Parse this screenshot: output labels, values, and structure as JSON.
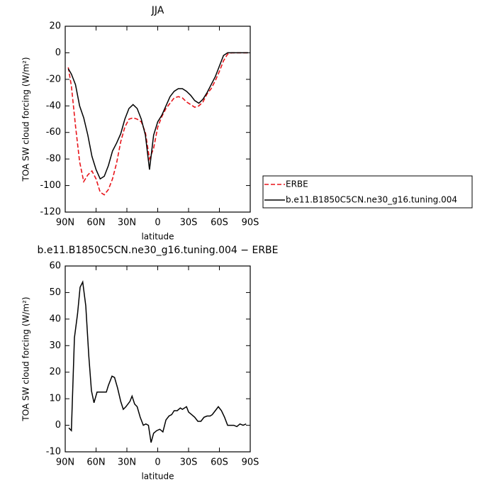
{
  "chart_data": [
    {
      "type": "line",
      "title": "JJA",
      "xlabel": "latitude",
      "ylabel": "TOA SW cloud forcing (W/m²)",
      "x": [
        87,
        84,
        80,
        76,
        72,
        68,
        64,
        60,
        56,
        52,
        48,
        44,
        40,
        36,
        32,
        28,
        24,
        20,
        16,
        12,
        8,
        4,
        0,
        -4,
        -8,
        -12,
        -16,
        -20,
        -24,
        -28,
        -32,
        -36,
        -40,
        -44,
        -48,
        -52,
        -56,
        -60,
        -64,
        -68,
        -72,
        -76,
        -80,
        -84,
        -88
      ],
      "xlim": [
        90,
        -90
      ],
      "xticks": [
        {
          "value": 90,
          "label": "90N"
        },
        {
          "value": 60,
          "label": "60N"
        },
        {
          "value": 30,
          "label": "30N"
        },
        0,
        {
          "value": -30,
          "label": "30S"
        },
        {
          "value": -60,
          "label": "60S"
        },
        {
          "value": -90,
          "label": "90S"
        }
      ],
      "ylim": [
        -120,
        20
      ],
      "yticks": [
        -120,
        -100,
        -80,
        -60,
        -40,
        -20,
        0,
        20
      ],
      "legend": "right",
      "series": [
        {
          "name": "ERBE",
          "color": "#e8141a",
          "dashed": true,
          "values": [
            -11,
            -25,
            -55,
            -82,
            -97,
            -92,
            -89,
            -95,
            -105,
            -107,
            -103,
            -95,
            -83,
            -67,
            -56,
            -50,
            -49,
            -50,
            -52,
            -60,
            -80,
            -72,
            -56,
            -48,
            -42,
            -38,
            -34,
            -33,
            -34,
            -37,
            -39,
            -41,
            -40,
            -37,
            -31,
            -27,
            -21,
            -14,
            -6,
            -1,
            0,
            0,
            0,
            0,
            0
          ]
        },
        {
          "name": "b.e11.B1850C5CN.ne30_g16.tuning.004",
          "color": "#000000",
          "dashed": false,
          "values": [
            -12,
            -16,
            -24,
            -40,
            -49,
            -62,
            -78,
            -88,
            -95,
            -93,
            -85,
            -74,
            -68,
            -61,
            -50,
            -42,
            -39,
            -42,
            -50,
            -62,
            -88,
            -62,
            -52,
            -47,
            -40,
            -33,
            -29,
            -27,
            -27,
            -29,
            -32,
            -36,
            -38,
            -35,
            -30,
            -24,
            -18,
            -10,
            -2,
            0,
            0,
            0,
            0,
            0,
            0
          ]
        }
      ]
    },
    {
      "type": "line",
      "title": "b.e11.B1850C5CN.ne30_g16.tuning.004 − ERBE",
      "xlabel": "latitude",
      "ylabel": "TOA SW cloud forcing (W/m²)",
      "x": [
        86.5,
        84,
        81,
        78,
        75.5,
        73,
        70,
        67,
        64.5,
        62,
        59,
        55.5,
        50,
        48,
        44.5,
        42,
        39,
        36,
        33.5,
        31,
        27,
        25,
        22.5,
        20,
        17,
        14,
        11.5,
        9,
        6.5,
        4,
        1,
        -2,
        -5,
        -8,
        -11,
        -13.5,
        -16,
        -19,
        -22,
        -24,
        -28,
        -30,
        -33,
        -36,
        -39,
        -42,
        -45,
        -48,
        -51,
        -53,
        -56,
        -59,
        -62,
        -65,
        -68,
        -71,
        -74,
        -77,
        -80,
        -83,
        -86
      ],
      "xlim": [
        90,
        -90
      ],
      "xticks": [
        {
          "value": 90,
          "label": "90N"
        },
        {
          "value": 60,
          "label": "60N"
        },
        {
          "value": 30,
          "label": "30N"
        },
        0,
        {
          "value": -30,
          "label": "30S"
        },
        {
          "value": -60,
          "label": "60S"
        },
        {
          "value": -90,
          "label": "90S"
        }
      ],
      "ylim": [
        -10,
        60
      ],
      "yticks": [
        -10,
        0,
        10,
        20,
        30,
        40,
        50,
        60
      ],
      "series": [
        {
          "color": "#000000",
          "dashed": false,
          "values": [
            -1,
            -2,
            33,
            42,
            52,
            54,
            45,
            26,
            13,
            8.5,
            12.5,
            12.5,
            12.5,
            15,
            18.5,
            18,
            14,
            9,
            6,
            7,
            9,
            11,
            8,
            7,
            3,
            0,
            0.5,
            0,
            -6.5,
            -3,
            -2,
            -1.5,
            -2.5,
            2,
            3.5,
            4,
            5.5,
            5.5,
            6.5,
            6,
            7,
            5,
            4,
            3,
            1.5,
            1.5,
            3,
            3.5,
            3.5,
            4,
            5.5,
            7,
            5.5,
            3,
            0,
            0,
            0,
            -0.5,
            0.5,
            0,
            0.5
          ]
        }
      ]
    }
  ]
}
